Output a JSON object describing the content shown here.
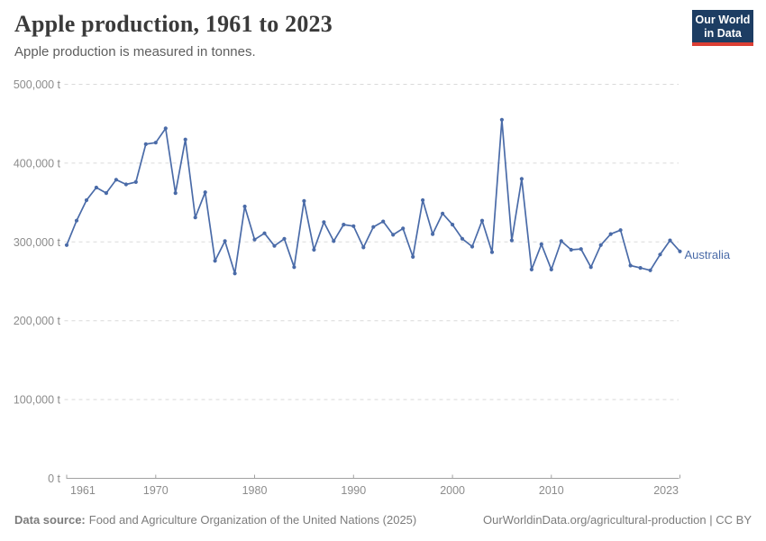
{
  "header": {
    "title": "Apple production, 1961 to 2023",
    "subtitle": "Apple production is measured in tonnes."
  },
  "logo": {
    "line1": "Our World",
    "line2": "in Data"
  },
  "entity_label": "Australia",
  "chart_data": {
    "type": "line",
    "title": "Apple production, 1961 to 2023",
    "unit": "tonnes",
    "xlabel": "",
    "ylabel": "",
    "x_axis_range": [
      1961,
      2023
    ],
    "ylim": [
      0,
      500000
    ],
    "grid": "dashed horizontal gridlines, solid zero axis",
    "legend_position": "end-of-line label",
    "x_ticks": [
      1961,
      1970,
      1980,
      1990,
      2000,
      2010,
      2023
    ],
    "y_ticks": [
      {
        "value": 0,
        "label": "0 t"
      },
      {
        "value": 100000,
        "label": "100,000 t"
      },
      {
        "value": 200000,
        "label": "200,000 t"
      },
      {
        "value": 300000,
        "label": "300,000 t"
      },
      {
        "value": 400000,
        "label": "400,000 t"
      },
      {
        "value": 500000,
        "label": "500,000 t"
      }
    ],
    "series": [
      {
        "name": "Australia",
        "color": "#4a6ba8",
        "x": [
          1961,
          1962,
          1963,
          1964,
          1965,
          1966,
          1967,
          1968,
          1969,
          1970,
          1971,
          1972,
          1973,
          1974,
          1975,
          1976,
          1977,
          1978,
          1979,
          1980,
          1981,
          1982,
          1983,
          1984,
          1985,
          1986,
          1987,
          1988,
          1989,
          1990,
          1991,
          1992,
          1993,
          1994,
          1995,
          1996,
          1997,
          1998,
          1999,
          2000,
          2001,
          2002,
          2003,
          2004,
          2005,
          2006,
          2007,
          2008,
          2009,
          2010,
          2011,
          2012,
          2013,
          2014,
          2015,
          2016,
          2017,
          2018,
          2019,
          2020,
          2021,
          2022,
          2023
        ],
        "values": [
          296000,
          327000,
          353000,
          369000,
          362000,
          379000,
          373000,
          376000,
          424000,
          426000,
          444000,
          362000,
          430000,
          331000,
          363000,
          276000,
          301000,
          260000,
          345000,
          303000,
          311000,
          295000,
          304000,
          268000,
          352000,
          290000,
          325000,
          301000,
          322000,
          320000,
          293000,
          319000,
          326000,
          309000,
          317000,
          281000,
          353000,
          310000,
          336000,
          322000,
          304000,
          294000,
          327000,
          287000,
          455000,
          302000,
          380000,
          265000,
          297000,
          265000,
          301000,
          290000,
          291000,
          268000,
          296000,
          310000,
          315000,
          270000,
          267000,
          264000,
          284000,
          302000,
          288000
        ]
      }
    ]
  },
  "footer": {
    "source_label": "Data source:",
    "source_text": "Food and Agriculture Organization of the United Nations (2025)",
    "link_text": "OurWorldinData.org/agricultural-production",
    "separator": " | ",
    "license_text": "CC BY"
  }
}
